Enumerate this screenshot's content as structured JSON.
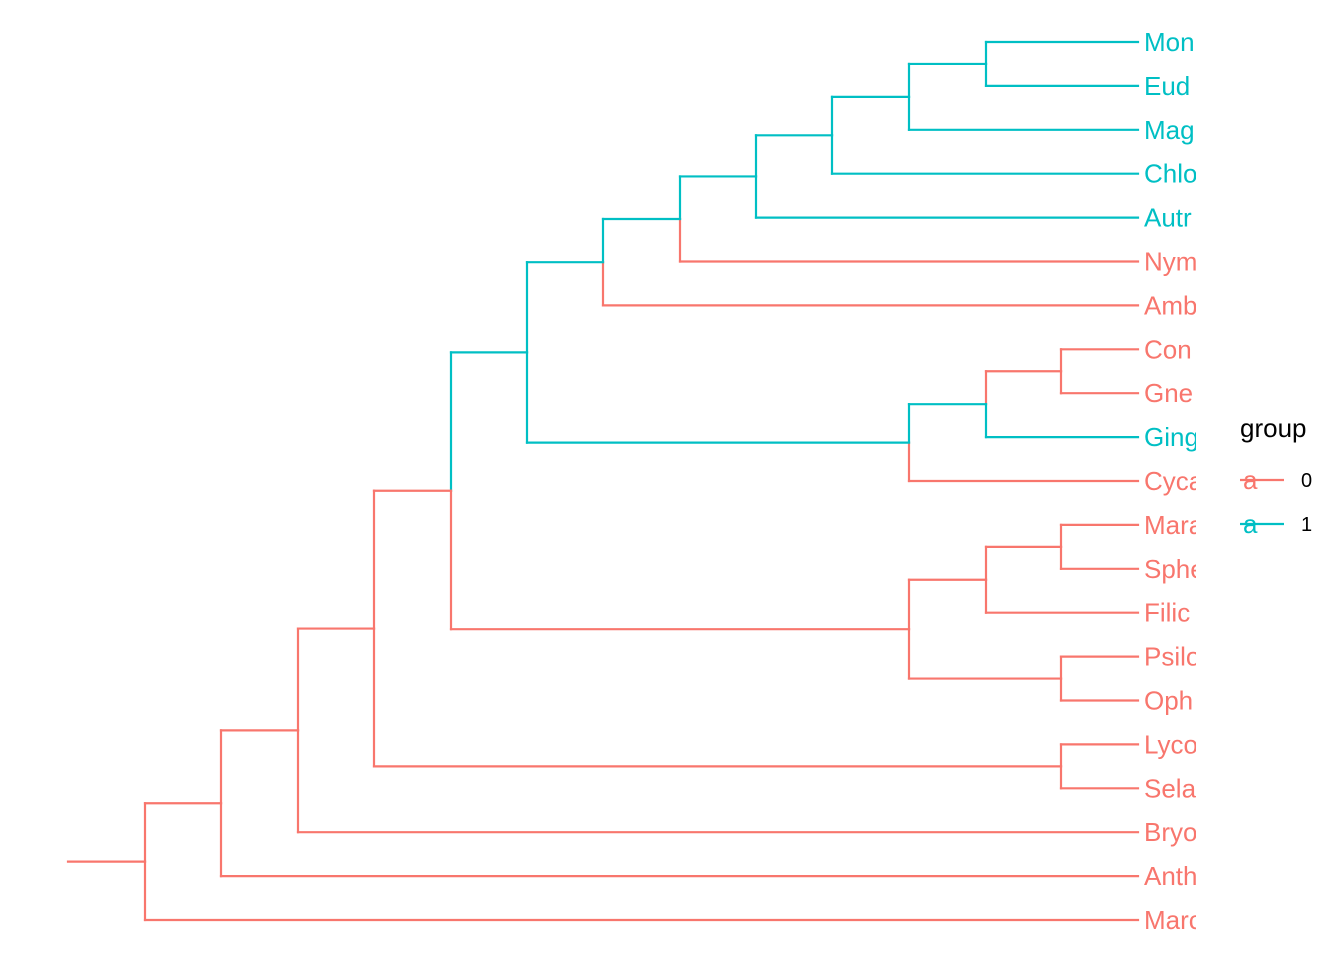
{
  "colors": {
    "group_0": "#F8766D",
    "group_1": "#00BFC4"
  },
  "tree": {
    "tips": [
      {
        "label": "Mon",
        "group": "1"
      },
      {
        "label": "Eud",
        "group": "1"
      },
      {
        "label": "Mag",
        "group": "1"
      },
      {
        "label": "Chlo",
        "group": "1"
      },
      {
        "label": "Autr",
        "group": "1"
      },
      {
        "label": "Nym",
        "group": "0"
      },
      {
        "label": "Amb",
        "group": "0"
      },
      {
        "label": "Con",
        "group": "0"
      },
      {
        "label": "Gne",
        "group": "0"
      },
      {
        "label": "Ging",
        "group": "1"
      },
      {
        "label": "Cyca",
        "group": "0"
      },
      {
        "label": "Mara",
        "group": "0"
      },
      {
        "label": "Sphe",
        "group": "0"
      },
      {
        "label": "Filic",
        "group": "0"
      },
      {
        "label": "Psilo",
        "group": "0"
      },
      {
        "label": "Oph",
        "group": "0"
      },
      {
        "label": "Lyco",
        "group": "0"
      },
      {
        "label": "Sela",
        "group": "0"
      },
      {
        "label": "Bryo",
        "group": "0"
      },
      {
        "label": "Anth",
        "group": "0"
      },
      {
        "label": "Marc",
        "group": "0"
      }
    ]
  },
  "legend": {
    "title": "group",
    "key_glyph": "a",
    "entries": [
      {
        "label": "0",
        "group": "0"
      },
      {
        "label": "1",
        "group": "1"
      }
    ]
  }
}
